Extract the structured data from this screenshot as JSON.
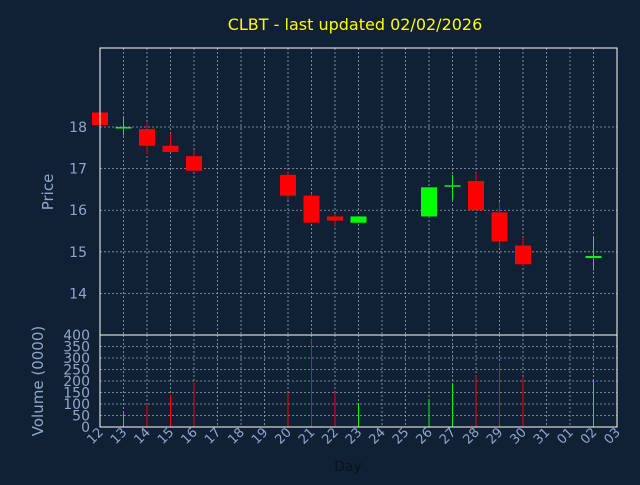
{
  "chart_data": {
    "type": "candlestick",
    "title": "CLBT - last updated 02/02/2026",
    "xlabel": "Day",
    "ylabel_price": "Price",
    "ylabel_volume": "Volume (0000)",
    "x_ticks": [
      "12",
      "13",
      "14",
      "15",
      "16",
      "17",
      "18",
      "19",
      "20",
      "21",
      "22",
      "23",
      "24",
      "25",
      "26",
      "27",
      "28",
      "29",
      "30",
      "31",
      "01",
      "02",
      "03"
    ],
    "price_ylim": [
      13.0,
      19.9
    ],
    "price_ticks": [
      14,
      15,
      16,
      17,
      18
    ],
    "volume_ylim": [
      0,
      400
    ],
    "volume_ticks": [
      0,
      50,
      100,
      150,
      200,
      250,
      300,
      350,
      400
    ],
    "grid": true,
    "colors": {
      "background": "#102035",
      "plot_border": "#ffffff",
      "grid": "#9aa3ad",
      "axis_text": "#8fa8c8",
      "title": "#ffff00",
      "up": "#00ff00",
      "down": "#ff0000"
    },
    "candles": [
      {
        "day": "12",
        "open": 18.35,
        "high": 18.4,
        "low": 18.05,
        "close": 18.05,
        "volume": 30
      },
      {
        "day": "13",
        "open": 18.0,
        "high": 18.25,
        "low": 17.8,
        "close": 18.0,
        "volume": 60
      },
      {
        "day": "14",
        "open": 17.95,
        "high": 18.1,
        "low": 17.35,
        "close": 17.55,
        "volume": 100
      },
      {
        "day": "15",
        "open": 17.55,
        "high": 17.85,
        "low": 17.4,
        "close": 17.4,
        "volume": 140
      },
      {
        "day": "16",
        "open": 17.3,
        "high": 17.45,
        "low": 16.95,
        "close": 16.95,
        "volume": 190
      },
      {
        "day": "20",
        "open": 16.85,
        "high": 16.9,
        "low": 16.25,
        "close": 16.35,
        "volume": 150
      },
      {
        "day": "21",
        "open": 16.35,
        "high": 16.4,
        "low": 15.7,
        "close": 15.7,
        "volume": 385
      },
      {
        "day": "22",
        "open": 15.85,
        "high": 15.9,
        "low": 15.6,
        "close": 15.75,
        "volume": 150
      },
      {
        "day": "23",
        "open": 15.7,
        "high": 15.85,
        "low": 15.7,
        "close": 15.85,
        "volume": 105
      },
      {
        "day": "26",
        "open": 15.85,
        "high": 16.55,
        "low": 15.85,
        "close": 16.55,
        "volume": 120
      },
      {
        "day": "27",
        "open": 16.6,
        "high": 16.85,
        "low": 16.25,
        "close": 16.6,
        "volume": 190
      },
      {
        "day": "28",
        "open": 16.7,
        "high": 16.9,
        "low": 16.0,
        "close": 16.0,
        "volume": 225
      },
      {
        "day": "29",
        "open": 15.95,
        "high": 16.2,
        "low": 15.1,
        "close": 15.25,
        "volume": 280
      },
      {
        "day": "30",
        "open": 15.15,
        "high": 15.35,
        "low": 14.65,
        "close": 14.7,
        "volume": 215
      },
      {
        "day": "02",
        "open": 14.85,
        "high": 15.35,
        "low": 14.55,
        "close": 14.9,
        "volume": 200
      }
    ]
  }
}
